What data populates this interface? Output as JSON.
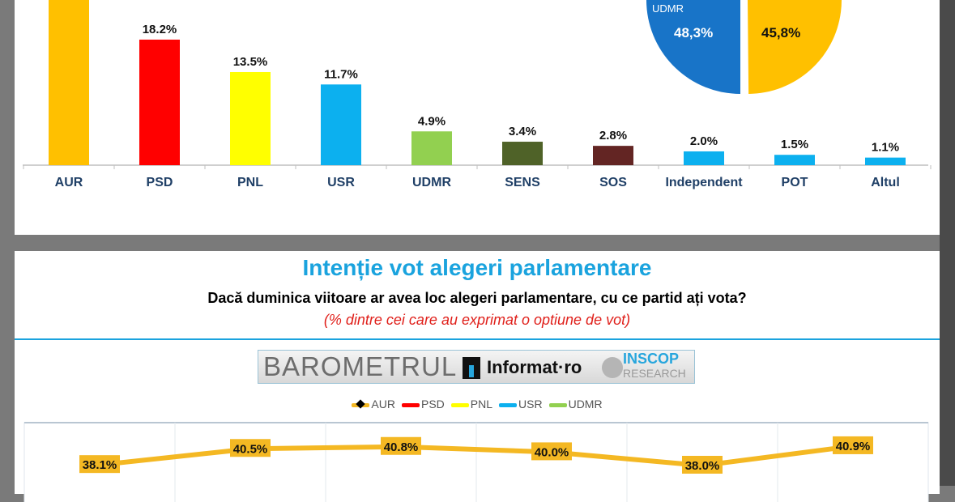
{
  "chart_data": [
    {
      "type": "bar",
      "categories": [
        "AUR",
        "PSD",
        "PNL",
        "USR",
        "UDMR",
        "SENS",
        "SOS",
        "Independent",
        "POT",
        "Altul"
      ],
      "values": [
        null,
        18.2,
        13.5,
        11.7,
        4.9,
        3.4,
        2.8,
        2.0,
        1.5,
        1.1
      ],
      "labels": [
        "",
        "18.2%",
        "13.5%",
        "11.7%",
        "4.9%",
        "3.4%",
        "2.8%",
        "2.0%",
        "1.5%",
        "1.1%"
      ],
      "colors": [
        "#ffc000",
        "#ff0000",
        "#ffff00",
        "#0cb0ef",
        "#92d050",
        "#4f6228",
        "#632523",
        "#0cb0ef",
        "#0cb0ef",
        "#0cb0ef"
      ]
    },
    {
      "type": "pie",
      "slices": [
        {
          "label": "UDMR",
          "value": 48.3,
          "value_label": "48,3%",
          "color": "#1874c8"
        },
        {
          "label": "",
          "value": 45.8,
          "value_label": "45,8%",
          "color": "#ffc000"
        }
      ]
    },
    {
      "type": "line",
      "title": "Intenție vot alegeri parlamentare",
      "subtitle": "Dacă duminica viitoare ar avea loc alegeri parlamentare, cu ce partid ați vota?",
      "note": "(% dintre cei care au exprimat o optiune de vot)",
      "legend": [
        {
          "name": "AUR",
          "color": "#f4b823",
          "marker": "#000000"
        },
        {
          "name": "PSD",
          "color": "#ff0000"
        },
        {
          "name": "PNL",
          "color": "#ffff00"
        },
        {
          "name": "USR",
          "color": "#0cb0ef"
        },
        {
          "name": "UDMR",
          "color": "#92d050"
        }
      ],
      "legend_position": "top",
      "grid": true,
      "series": [
        {
          "name": "AUR",
          "color": "#f4b823",
          "values": [
            38.1,
            40.5,
            40.8,
            40.0,
            38.0,
            40.9
          ],
          "labels": [
            "38.1%",
            "40.5%",
            "40.8%",
            "40.0%",
            "38.0%",
            "40.9%"
          ]
        }
      ]
    }
  ],
  "logo": {
    "barometrul": "BAROMETRUL",
    "informat": "Informat·ro",
    "inscop": "INSCOP",
    "research": "RESEARCH"
  }
}
